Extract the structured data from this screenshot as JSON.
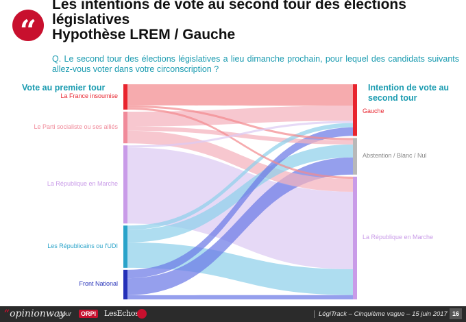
{
  "header": {
    "title_line1": "Les intentions de vote au second tour des élections",
    "title_line2": "législatives",
    "title_line3": "Hypothèse LREM / Gauche",
    "question": "Q. Le second tour des élections législatives a lieu dimanche prochain, pour lequel des candidats suivants allez-vous voter dans votre circonscription ?"
  },
  "logo_glyph": "“",
  "chart_data": {
    "type": "sankey",
    "left_header": "Vote au premier tour",
    "right_header": "Intention de vote au second tour",
    "left_nodes": [
      {
        "name": "La France insoumise",
        "color": "#e8242e",
        "band": "#f28b8f",
        "value": 12
      },
      {
        "name": "Le Parti socialiste ou ses alliés",
        "color": "#f08a9a",
        "band": "#f4b2bd",
        "value": 15
      },
      {
        "name": "La République en Marche",
        "color": "#c99be8",
        "band": "#dccaf3",
        "value": 37
      },
      {
        "name": "Les Républicains ou l'UDI",
        "color": "#2aa3c9",
        "band": "#8fd0ea",
        "value": 20
      },
      {
        "name": "Front National",
        "color": "#2430b8",
        "band": "#6c7ae6",
        "value": 14
      }
    ],
    "right_nodes": [
      {
        "name": "Gauche",
        "color": "#e8242e",
        "value": 24
      },
      {
        "name": "Abstention / Blanc / Nul",
        "color": "#b8b8b8",
        "value": 17
      },
      {
        "name": "La République en Marche",
        "color": "#c99be8",
        "value": 57
      }
    ],
    "flows": [
      {
        "from": 0,
        "to": 0,
        "value": 10
      },
      {
        "from": 0,
        "to": 1,
        "value": 1
      },
      {
        "from": 0,
        "to": 2,
        "value": 1
      },
      {
        "from": 1,
        "to": 0,
        "value": 7
      },
      {
        "from": 1,
        "to": 1,
        "value": 2
      },
      {
        "from": 1,
        "to": 2,
        "value": 6
      },
      {
        "from": 2,
        "to": 0,
        "value": 1
      },
      {
        "from": 2,
        "to": 2,
        "value": 36
      },
      {
        "from": 3,
        "to": 0,
        "value": 2
      },
      {
        "from": 3,
        "to": 1,
        "value": 6
      },
      {
        "from": 3,
        "to": 2,
        "value": 12
      },
      {
        "from": 4,
        "to": 0,
        "value": 4
      },
      {
        "from": 4,
        "to": 1,
        "value": 8
      },
      {
        "from": 4,
        "to": 2,
        "value": 2
      }
    ]
  },
  "footer": {
    "brand": "opinionway",
    "brand_quote": "“",
    "pour": "pour",
    "orpi": "ORPI",
    "echos": "LesEchos",
    "source": "LégiTrack – Cinquième vague – 15 juin 2017",
    "page": "16"
  }
}
